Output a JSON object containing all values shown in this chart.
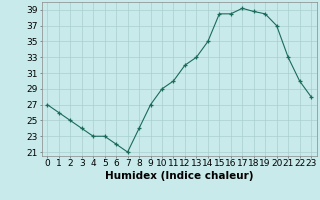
{
  "x": [
    0,
    1,
    2,
    3,
    4,
    5,
    6,
    7,
    8,
    9,
    10,
    11,
    12,
    13,
    14,
    15,
    16,
    17,
    18,
    19,
    20,
    21,
    22,
    23
  ],
  "humidex_values": [
    27,
    26,
    25,
    24,
    23,
    23,
    22,
    21,
    24,
    27,
    29,
    30,
    32,
    33,
    35,
    38.5,
    38.5,
    39.2,
    38.8,
    38.5,
    37,
    33,
    30,
    28
  ],
  "line_color": "#1a6b5a",
  "bg_color": "#c9eaea",
  "grid_color": "#aacece",
  "xlabel": "Humidex (Indice chaleur)",
  "ylim": [
    20.5,
    40.0
  ],
  "xlim": [
    -0.5,
    23.5
  ],
  "yticks": [
    21,
    23,
    25,
    27,
    29,
    31,
    33,
    35,
    37,
    39
  ],
  "xticks": [
    0,
    1,
    2,
    3,
    4,
    5,
    6,
    7,
    8,
    9,
    10,
    11,
    12,
    13,
    14,
    15,
    16,
    17,
    18,
    19,
    20,
    21,
    22,
    23
  ],
  "xlabel_fontsize": 7.5,
  "tick_fontsize": 6.5
}
